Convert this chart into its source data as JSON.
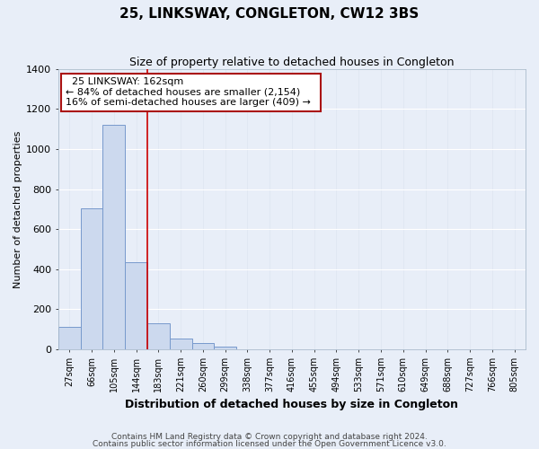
{
  "title": "25, LINKSWAY, CONGLETON, CW12 3BS",
  "subtitle": "Size of property relative to detached houses in Congleton",
  "xlabel": "Distribution of detached houses by size in Congleton",
  "ylabel": "Number of detached properties",
  "footnote1": "Contains HM Land Registry data © Crown copyright and database right 2024.",
  "footnote2": "Contains public sector information licensed under the Open Government Licence v3.0.",
  "bin_labels": [
    "27sqm",
    "66sqm",
    "105sqm",
    "144sqm",
    "183sqm",
    "221sqm",
    "260sqm",
    "299sqm",
    "338sqm",
    "377sqm",
    "416sqm",
    "455sqm",
    "494sqm",
    "533sqm",
    "571sqm",
    "610sqm",
    "649sqm",
    "688sqm",
    "727sqm",
    "766sqm",
    "805sqm"
  ],
  "bar_heights": [
    110,
    705,
    1120,
    435,
    130,
    55,
    30,
    15,
    0,
    0,
    0,
    0,
    0,
    0,
    0,
    0,
    0,
    0,
    0,
    0,
    0
  ],
  "bar_color": "#ccd9ee",
  "bar_edge_color": "#7799cc",
  "red_line_x": 3.5,
  "ylim": [
    0,
    1400
  ],
  "yticks": [
    0,
    200,
    400,
    600,
    800,
    1000,
    1200,
    1400
  ],
  "annotation_title": "25 LINKSWAY: 162sqm",
  "annotation_line1": "← 84% of detached houses are smaller (2,154)",
  "annotation_line2": "16% of semi-detached houses are larger (409) →",
  "annotation_box_facecolor": "#ffffff",
  "annotation_box_edgecolor": "#aa1111",
  "background_color": "#e8eef8",
  "grid_color": "#dde5f0",
  "title_fontsize": 11,
  "subtitle_fontsize": 9,
  "xlabel_fontsize": 9,
  "ylabel_fontsize": 8,
  "ytick_fontsize": 8,
  "xtick_fontsize": 7,
  "annot_fontsize": 8,
  "footnote_fontsize": 6.5
}
